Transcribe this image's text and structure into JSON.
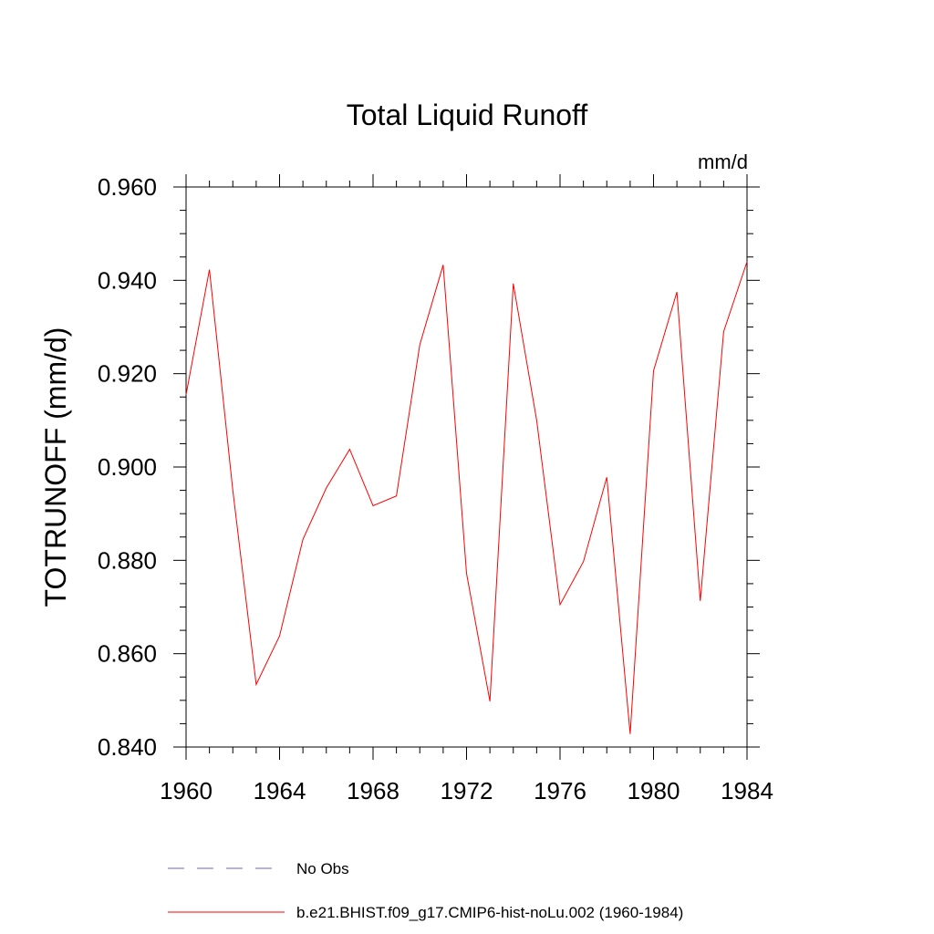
{
  "chart_data": {
    "type": "line",
    "title": "Total Liquid Runoff",
    "units_label": "mm/d",
    "xlabel": "",
    "ylabel": "TOTRUNOFF  (mm/d)",
    "xlim": [
      1960,
      1984
    ],
    "ylim": [
      0.84,
      0.96
    ],
    "x_ticks": [
      "1960",
      "1964",
      "1968",
      "1972",
      "1976",
      "1980",
      "1984"
    ],
    "y_ticks": [
      "0.840",
      "0.860",
      "0.880",
      "0.900",
      "0.920",
      "0.940",
      "0.960"
    ],
    "grid": false,
    "legend_position": "bottom",
    "x": [
      1960,
      1961,
      1962,
      1963,
      1964,
      1965,
      1966,
      1967,
      1968,
      1969,
      1970,
      1971,
      1972,
      1973,
      1974,
      1975,
      1976,
      1977,
      1978,
      1979,
      1980,
      1981,
      1982,
      1983,
      1984
    ],
    "series": [
      {
        "name": "b.e21.BHIST.f09_g17.CMIP6-hist-noLu.002 (1960-1984)",
        "color": "#ff0000",
        "style": "solid",
        "values": [
          0.9155,
          0.9423,
          0.895,
          0.8534,
          0.8638,
          0.8845,
          0.8955,
          0.9038,
          0.8917,
          0.8938,
          0.9262,
          0.9433,
          0.8772,
          0.8498,
          0.9393,
          0.91,
          0.8705,
          0.8797,
          0.8978,
          0.8428,
          0.9206,
          0.9375,
          0.8713,
          0.929,
          0.944
        ]
      }
    ],
    "legend": [
      {
        "label": "No Obs",
        "color": "#6666cc",
        "style": "dashed"
      },
      {
        "label": "b.e21.BHIST.f09_g17.CMIP6-hist-noLu.002 (1960-1984)",
        "color": "#ff0000",
        "style": "solid"
      }
    ]
  }
}
